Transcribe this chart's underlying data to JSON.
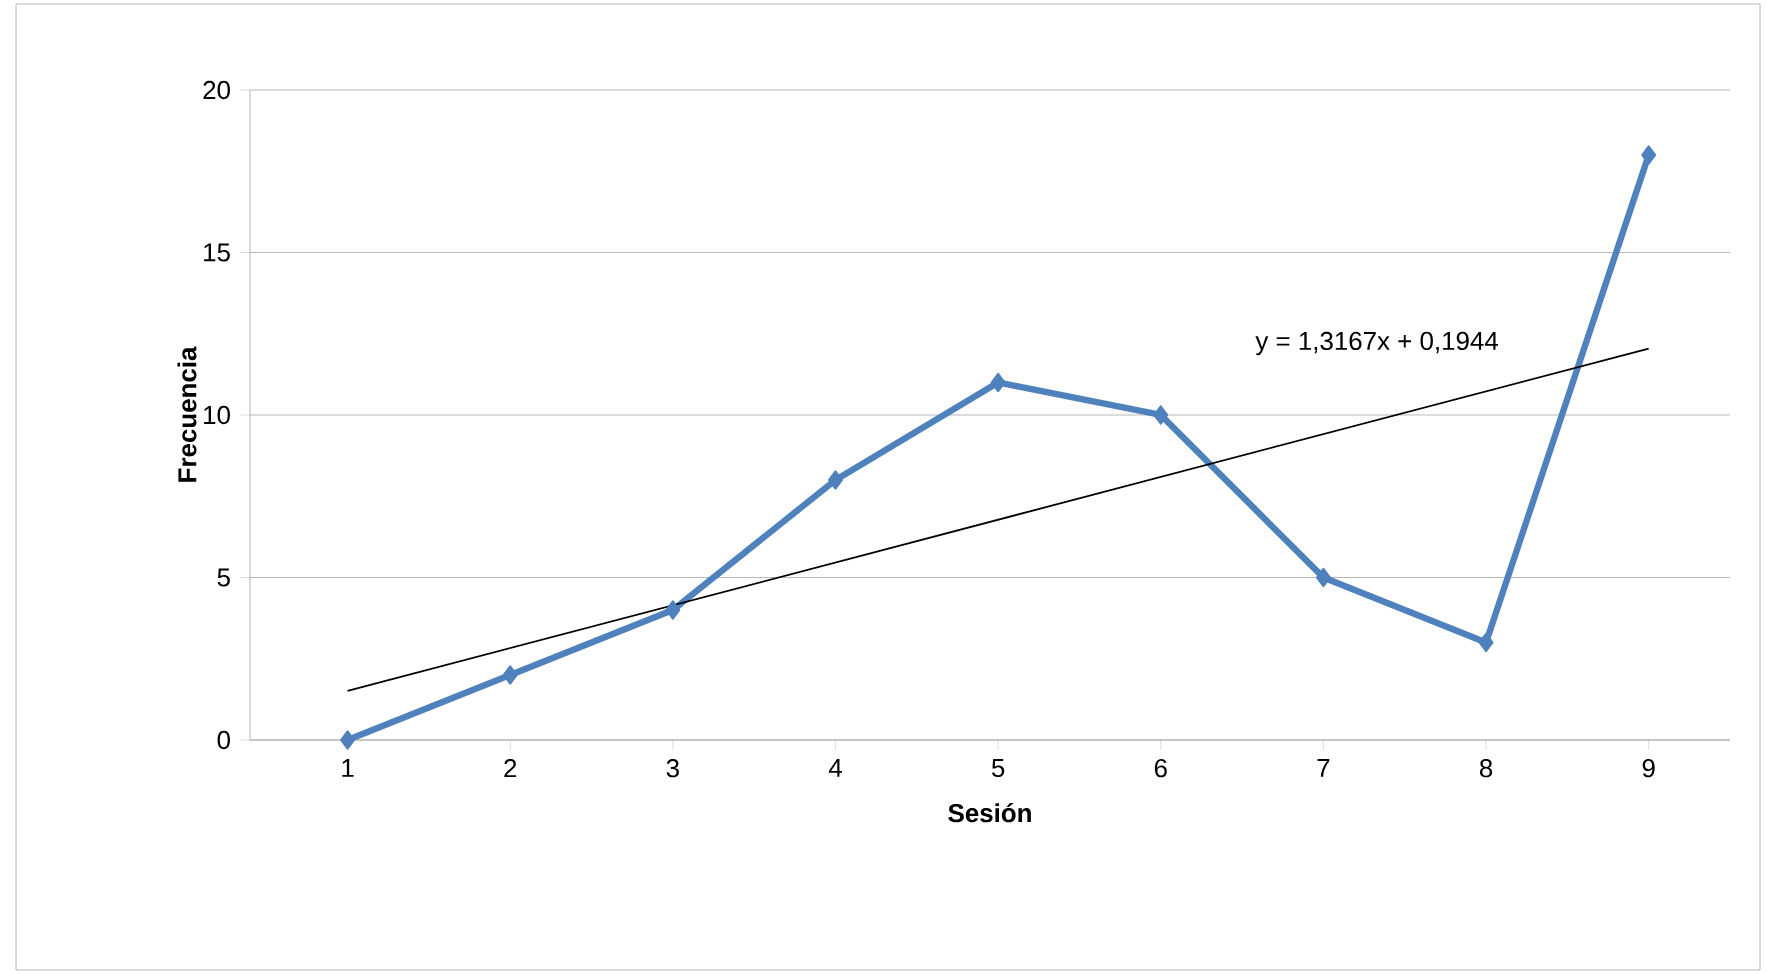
{
  "chart_data": {
    "type": "line",
    "xlabel": "Sesión",
    "ylabel": "Frecuencia",
    "x": [
      1,
      2,
      3,
      4,
      5,
      6,
      7,
      8,
      9
    ],
    "xlim": [
      0.4,
      9.5
    ],
    "xticks": [
      1,
      2,
      3,
      4,
      5,
      6,
      7,
      8,
      9
    ],
    "ylim": [
      0,
      20
    ],
    "yticks": [
      0,
      5,
      10,
      15,
      20
    ],
    "grid": "y",
    "series": [
      {
        "color": "#4f81bd",
        "values": [
          0,
          2,
          4,
          8,
          11,
          10,
          5,
          3,
          18
        ],
        "marker": "diamond",
        "line_style": "solid"
      },
      {
        "type": "line",
        "color": "#000000",
        "x": [
          1,
          9
        ],
        "values": [
          1.5111,
          12.0447
        ],
        "marker": "none",
        "line_style": "solid"
      }
    ],
    "annotations": [
      "y = 1,3167x + 0,1944"
    ]
  }
}
